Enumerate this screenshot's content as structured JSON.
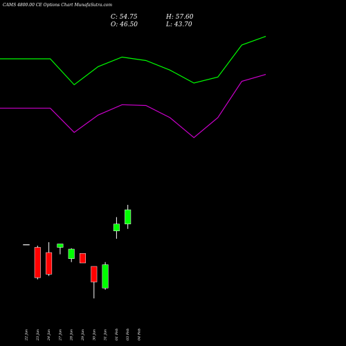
{
  "header": {
    "title": "CAMS 4800.00  CE Options  Chart MunafaSutra.com",
    "close_label": "C: 54.75",
    "open_label": "O: 46.50",
    "high_label": "H: 57.60",
    "low_label": "L: 43.70"
  },
  "colors": {
    "background": "#000000",
    "up": "#00ff00",
    "down": "#ff0000",
    "upper_line": "#00ff00",
    "lower_line": "#cc00cc",
    "wick": "#ffffff",
    "text": "#ffffff"
  },
  "chart_data": {
    "type": "candlestick",
    "categories": [
      "22 Jan",
      "23 Jan",
      "24 Jan",
      "27 Jan",
      "28 Jan",
      "29 Jan",
      "30 Jan",
      "31 Jan",
      "01 Feb",
      "03 Feb",
      "04 Feb"
    ],
    "candles": [
      {
        "date": "22 Jan",
        "open": 34.5,
        "high": 34.5,
        "low": 34.5,
        "close": 34.5
      },
      {
        "date": "23 Jan",
        "open": 33.0,
        "high": 34.0,
        "low": 14.5,
        "close": 15.5
      },
      {
        "date": "24 Jan",
        "open": 30.0,
        "high": 36.0,
        "low": 16.5,
        "close": 17.5
      },
      {
        "date": "27 Jan",
        "open": 33.0,
        "high": 35.0,
        "low": 29.0,
        "close": 35.0
      },
      {
        "date": "28 Jan",
        "open": 26.5,
        "high": 32.5,
        "low": 24.5,
        "close": 32.0
      },
      {
        "date": "29 Jan",
        "open": 29.5,
        "high": 29.5,
        "low": 24.0,
        "close": 24.0
      },
      {
        "date": "30 Jan",
        "open": 22.0,
        "high": 22.0,
        "low": 3.5,
        "close": 13.0
      },
      {
        "date": "31 Jan",
        "open": 9.5,
        "high": 24.5,
        "low": 8.5,
        "close": 23.0
      },
      {
        "date": "01 Feb",
        "open": 42.5,
        "high": 50.5,
        "low": 38.0,
        "close": 46.5
      },
      {
        "date": "03 Feb",
        "open": 46.5,
        "high": 57.6,
        "low": 43.7,
        "close": 54.75
      }
    ],
    "upper_line": [
      142.0,
      142.0,
      127.0,
      137.5,
      143.0,
      141.0,
      135.5,
      128.0,
      131.5,
      150.0,
      155.0
    ],
    "lower_line": [
      113.5,
      113.5,
      99.5,
      109.5,
      115.5,
      115.0,
      108.0,
      96.5,
      108.0,
      129.0,
      133.0
    ],
    "ylim": [
      0,
      160
    ]
  }
}
